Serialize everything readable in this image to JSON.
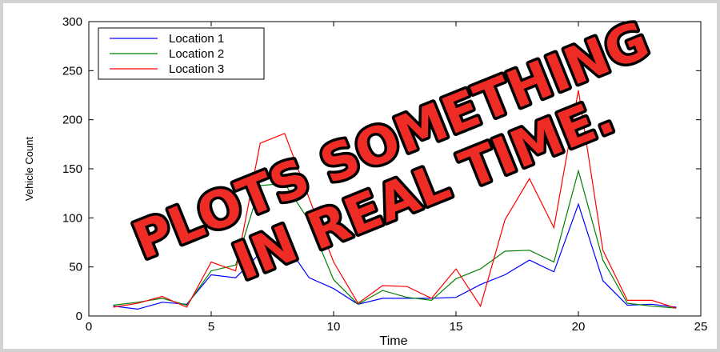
{
  "chart_data": {
    "type": "line",
    "xlabel": "Time",
    "ylabel": "Vehicle Count",
    "xlim": [
      0,
      25
    ],
    "ylim": [
      0,
      300
    ],
    "xticks": [
      0,
      5,
      10,
      15,
      20,
      25
    ],
    "yticks": [
      0,
      50,
      100,
      150,
      200,
      250,
      300
    ],
    "grid": false,
    "legend_position": "top-left",
    "x": [
      1,
      2,
      3,
      4,
      5,
      6,
      7,
      8,
      9,
      10,
      11,
      12,
      13,
      14,
      15,
      16,
      17,
      18,
      19,
      20,
      21,
      22,
      23,
      24
    ],
    "series": [
      {
        "name": "Location 1",
        "color": "#0000ff",
        "values": [
          10,
          7,
          14,
          12,
          42,
          39,
          64,
          75,
          39,
          28,
          12,
          18,
          18,
          18,
          19,
          32,
          42,
          57,
          45,
          114,
          36,
          11,
          12,
          9
        ]
      },
      {
        "name": "Location 2",
        "color": "#008000",
        "values": [
          11,
          14,
          18,
          11,
          46,
          52,
          133,
          135,
          97,
          37,
          12,
          26,
          19,
          16,
          38,
          48,
          66,
          67,
          55,
          148,
          57,
          13,
          10,
          8
        ]
      },
      {
        "name": "Location 3",
        "color": "#ff0000",
        "values": [
          9,
          13,
          20,
          9,
          55,
          46,
          176,
          186,
          120,
          55,
          13,
          31,
          30,
          18,
          48,
          10,
          98,
          140,
          90,
          230,
          67,
          16,
          16,
          8
        ]
      }
    ]
  },
  "overlay": {
    "line1": "PLOTS SOMETHING",
    "line2": "IN REAL TIME."
  }
}
